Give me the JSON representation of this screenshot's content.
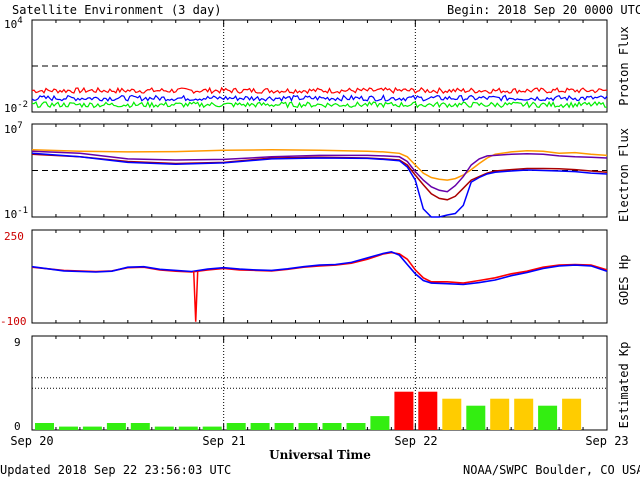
{
  "header": {
    "title": "Satellite Environment (3 day)",
    "begin": "Begin:  2018 Sep 20 0000 UTC"
  },
  "footer": {
    "updated": "Updated 2018 Sep 22 23:56:03 UTC",
    "credit": "NOAA/SWPC Boulder, CO USA"
  },
  "colors": {
    "red": "#ff0000",
    "blue": "#0000ff",
    "green": "#00ee00",
    "orange": "#ff9900",
    "purple": "#6600aa",
    "darkred": "#aa0000",
    "kp_green": "#33ee11",
    "kp_yellow": "#ffcc00",
    "kp_red": "#ff0000"
  },
  "chart_data": [
    {
      "type": "line",
      "name": "proton-flux",
      "ylabel": "Proton Flux",
      "yscale": "log",
      "ytick_labels": [
        "10^4",
        "10^-2"
      ],
      "ylim": [
        0.01,
        10000
      ],
      "threshold": 10,
      "xlim": [
        0,
        72
      ],
      "series": [
        {
          "color": "red",
          "level": 0.25
        },
        {
          "color": "blue",
          "level": 0.08
        },
        {
          "color": "green",
          "level": 0.03
        }
      ]
    },
    {
      "type": "line",
      "name": "electron-flux",
      "ylabel": "Electron Flux",
      "yscale": "log",
      "ytick_labels": [
        "10^7",
        "10^-1"
      ],
      "ylim": [
        0.1,
        10000000
      ],
      "threshold": 1000,
      "xlim": [
        0,
        72
      ],
      "series": [
        {
          "color": "orange",
          "x": [
            0,
            6,
            12,
            18,
            24,
            30,
            36,
            42,
            44,
            46,
            47,
            48,
            49,
            50,
            51,
            52,
            53,
            54,
            55,
            56,
            57,
            58,
            60,
            62,
            64,
            66,
            68,
            70,
            72
          ],
          "y": [
            60000,
            45000,
            40000,
            42000,
            55000,
            60000,
            55000,
            45000,
            40000,
            30000,
            15000,
            3000,
            600,
            250,
            180,
            150,
            200,
            400,
            1200,
            4000,
            12000,
            25000,
            40000,
            50000,
            45000,
            30000,
            35000,
            25000,
            20000
          ]
        },
        {
          "color": "darkred",
          "x": [
            0,
            6,
            12,
            18,
            24,
            30,
            36,
            42,
            44,
            46,
            47,
            48,
            49,
            50,
            51,
            52,
            53,
            54,
            55,
            56,
            57,
            58,
            60,
            62,
            64,
            66,
            68,
            70,
            72
          ],
          "y": [
            25000,
            15000,
            6000,
            4000,
            5000,
            12000,
            14000,
            12000,
            10000,
            8000,
            3000,
            400,
            60,
            10,
            4,
            3,
            6,
            30,
            150,
            300,
            600,
            900,
            1200,
            1500,
            1500,
            1400,
            1200,
            900,
            700
          ]
        },
        {
          "color": "purple",
          "x": [
            0,
            6,
            12,
            18,
            24,
            30,
            36,
            42,
            44,
            46,
            47,
            48,
            49,
            50,
            51,
            52,
            53,
            54,
            55,
            56,
            57,
            58,
            60,
            62,
            64,
            66,
            68,
            70,
            72
          ],
          "y": [
            45000,
            30000,
            10000,
            8000,
            9000,
            15000,
            20000,
            20000,
            18000,
            15000,
            6000,
            800,
            150,
            40,
            20,
            15,
            50,
            300,
            3000,
            10000,
            18000,
            20000,
            25000,
            28000,
            25000,
            18000,
            15000,
            14000,
            12000
          ]
        },
        {
          "color": "blue",
          "x": [
            0,
            6,
            12,
            18,
            24,
            30,
            36,
            42,
            44,
            46,
            47,
            48,
            49,
            50,
            51,
            52,
            53,
            54,
            55,
            56,
            57,
            58,
            60,
            62,
            64,
            66,
            68,
            70,
            72
          ],
          "y": [
            30000,
            15000,
            5000,
            3500,
            4500,
            10000,
            12000,
            11000,
            9000,
            7000,
            2000,
            150,
            0.5,
            0.1,
            0.1,
            0.15,
            0.2,
            1,
            100,
            250,
            500,
            700,
            900,
            1100,
            1000,
            900,
            800,
            600,
            500
          ]
        }
      ]
    },
    {
      "type": "line",
      "name": "goes-hp",
      "ylabel": "GOES Hp",
      "ytick_labels": [
        "250",
        "-100"
      ],
      "ylim": [
        -100,
        250
      ],
      "xlim": [
        0,
        72
      ],
      "series": [
        {
          "color": "red",
          "x": [
            0,
            4,
            8,
            10,
            12,
            14,
            16,
            18,
            20,
            22,
            24,
            26,
            28,
            30,
            32,
            34,
            36,
            38,
            40,
            42,
            44,
            45,
            46,
            47,
            48,
            49,
            50,
            52,
            54,
            56,
            58,
            60,
            62,
            64,
            66,
            68,
            70,
            72
          ],
          "y": [
            110,
            98,
            94,
            96,
            108,
            110,
            100,
            95,
            92,
            100,
            105,
            100,
            98,
            96,
            102,
            110,
            115,
            118,
            125,
            140,
            160,
            165,
            160,
            140,
            100,
            70,
            55,
            55,
            50,
            60,
            70,
            85,
            95,
            110,
            118,
            120,
            118,
            100
          ]
        },
        {
          "color": "blue",
          "x": [
            0,
            4,
            8,
            10,
            12,
            14,
            16,
            18,
            20,
            22,
            24,
            26,
            28,
            30,
            32,
            34,
            36,
            38,
            40,
            42,
            44,
            45,
            46,
            47,
            48,
            49,
            50,
            52,
            54,
            56,
            58,
            60,
            62,
            64,
            66,
            68,
            70,
            72
          ],
          "y": [
            112,
            96,
            92,
            95,
            110,
            112,
            102,
            98,
            94,
            103,
            108,
            103,
            100,
            98,
            104,
            112,
            118,
            120,
            128,
            145,
            162,
            168,
            155,
            120,
            85,
            60,
            50,
            48,
            45,
            52,
            62,
            78,
            90,
            105,
            115,
            118,
            115,
            95
          ]
        }
      ],
      "spike": {
        "x": 20.5,
        "y": -95
      }
    },
    {
      "type": "bar",
      "name": "estimated-kp",
      "ylabel": "Estimated Kp",
      "ytick_labels": [
        "9",
        "0"
      ],
      "ylim": [
        0,
        9
      ],
      "bin_hours": 3,
      "values": [
        0.67,
        0.33,
        0.33,
        0.67,
        0.67,
        0.33,
        0.33,
        0.33,
        0.67,
        0.67,
        0.67,
        0.67,
        0.67,
        0.67,
        1.33,
        3.67,
        3.67,
        3.0,
        2.33,
        3.0,
        3.0,
        2.33,
        3.0
      ],
      "bar_colors": [
        "kp_green",
        "kp_green",
        "kp_green",
        "kp_green",
        "kp_green",
        "kp_green",
        "kp_green",
        "kp_green",
        "kp_green",
        "kp_green",
        "kp_green",
        "kp_green",
        "kp_green",
        "kp_green",
        "kp_green",
        "kp_red",
        "kp_red",
        "kp_yellow",
        "kp_green",
        "kp_yellow",
        "kp_yellow",
        "kp_green",
        "kp_yellow"
      ]
    }
  ],
  "xaxis": {
    "label": "Universal Time",
    "ticks": [
      "Sep 20",
      "Sep 21",
      "Sep 22",
      "Sep 23"
    ]
  }
}
